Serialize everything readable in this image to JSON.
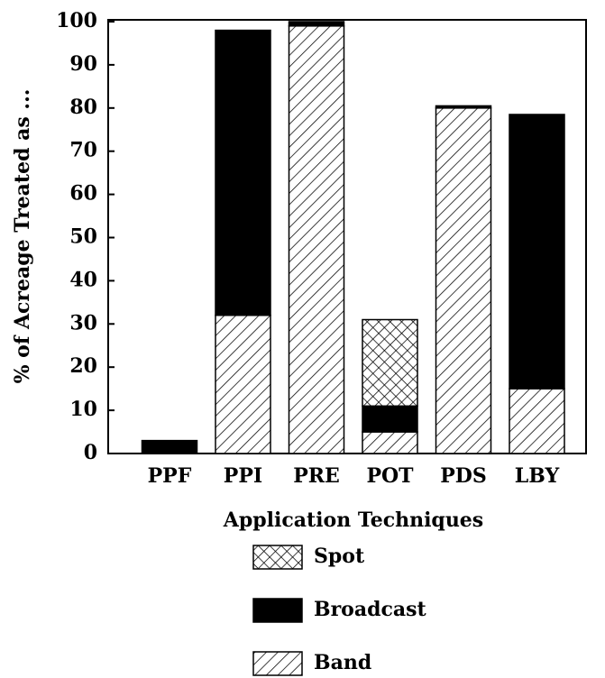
{
  "chart_data": {
    "type": "stacked_bar",
    "ylabel": "% of Acreage Treated as ...",
    "xlabel": "Application Techniques",
    "categories": [
      "PPF",
      "PPI",
      "PRE",
      "POT",
      "PDS",
      "LBY"
    ],
    "series": [
      {
        "name": "Band",
        "color": "#000000",
        "pattern": "hatch",
        "values": [
          0,
          32,
          99,
          5,
          80,
          15
        ]
      },
      {
        "name": "Broadcast",
        "color": "#000000",
        "pattern": "solid",
        "values": [
          3,
          66,
          1,
          6,
          0.5,
          63.5
        ]
      },
      {
        "name": "Spot",
        "color": "#000000",
        "pattern": "crosshatch",
        "values": [
          0,
          0,
          0,
          20,
          0,
          0
        ]
      }
    ],
    "ylim": [
      0,
      100
    ],
    "yticks": [
      0,
      10,
      20,
      30,
      40,
      50,
      60,
      70,
      80,
      90,
      100
    ]
  }
}
